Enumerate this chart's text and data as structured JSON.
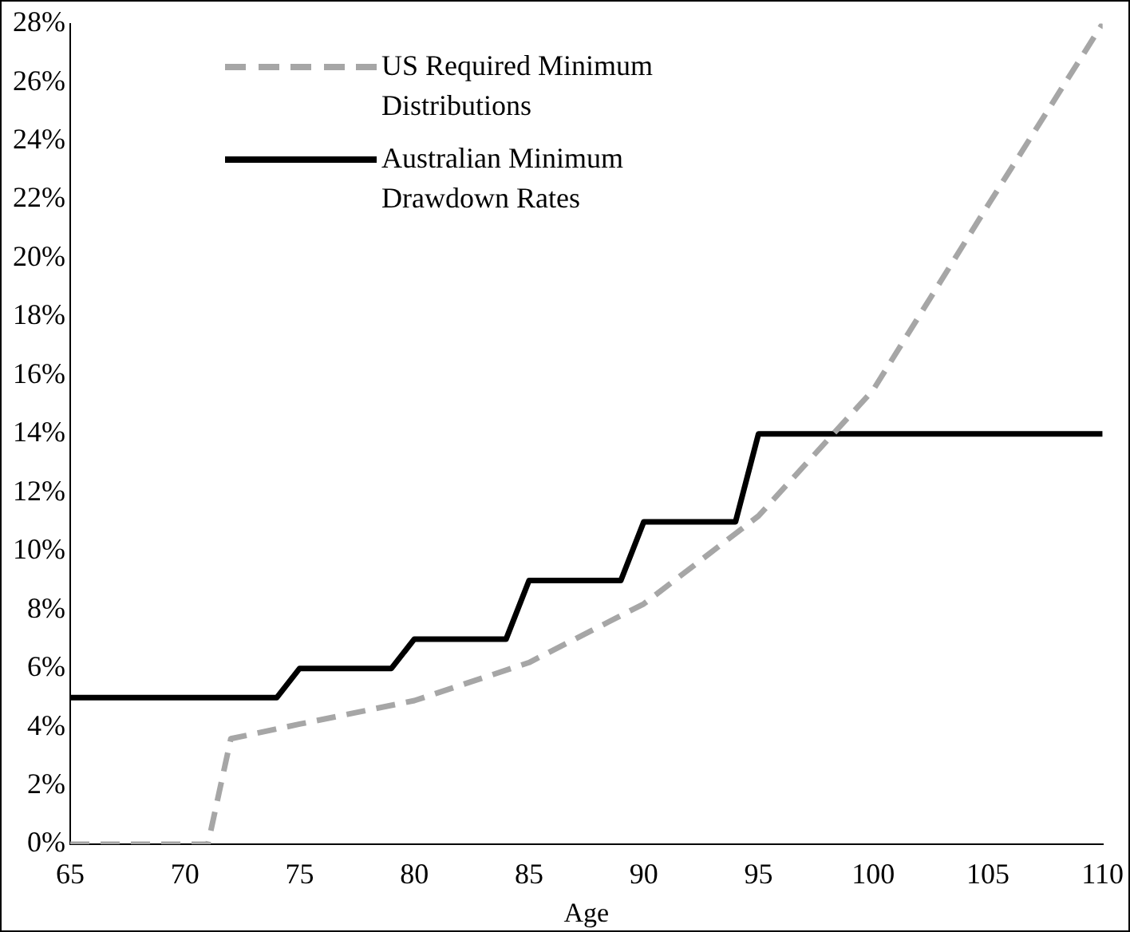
{
  "chart_data": {
    "type": "line",
    "xlabel": "Age",
    "legend": "top left",
    "marker": "none",
    "xlim": [
      65,
      110
    ],
    "xticks": [
      65,
      70,
      75,
      80,
      85,
      90,
      95,
      100,
      105,
      110
    ],
    "ylim": [
      0,
      28
    ],
    "yticks": [
      {
        "value": 0,
        "label": "0%"
      },
      {
        "value": 2,
        "label": "2%"
      },
      {
        "value": 4,
        "label": "4%"
      },
      {
        "value": 6,
        "label": "6%"
      },
      {
        "value": 8,
        "label": "8%"
      },
      {
        "value": 10,
        "label": "10%"
      },
      {
        "value": 12,
        "label": "12%"
      },
      {
        "value": 14,
        "label": "14%"
      },
      {
        "value": 16,
        "label": "16%"
      },
      {
        "value": 18,
        "label": "18%"
      },
      {
        "value": 20,
        "label": "20%"
      },
      {
        "value": 22,
        "label": "22%"
      },
      {
        "value": 24,
        "label": "24%"
      },
      {
        "value": 26,
        "label": "26%"
      },
      {
        "value": 28,
        "label": "28%"
      }
    ],
    "series": [
      {
        "name": "US Required Minimum Distributions",
        "color": "#a6a6a6",
        "line_style": "dashed",
        "x": [
          65,
          71,
          72,
          75,
          80,
          85,
          90,
          95,
          100,
          105,
          110
        ],
        "values": [
          0,
          0,
          3.6,
          4.1,
          4.9,
          6.2,
          8.2,
          11.2,
          15.5,
          21.8,
          28
        ]
      },
      {
        "name": "Australian Minimum Drawdown Rates",
        "color": "#000000",
        "line_style": "solid",
        "x": [
          65,
          74,
          75,
          79,
          80,
          84,
          85,
          89,
          90,
          94,
          95,
          110
        ],
        "values": [
          5,
          5,
          6,
          6,
          7,
          7,
          9,
          9,
          11,
          11,
          14,
          14
        ]
      }
    ]
  }
}
